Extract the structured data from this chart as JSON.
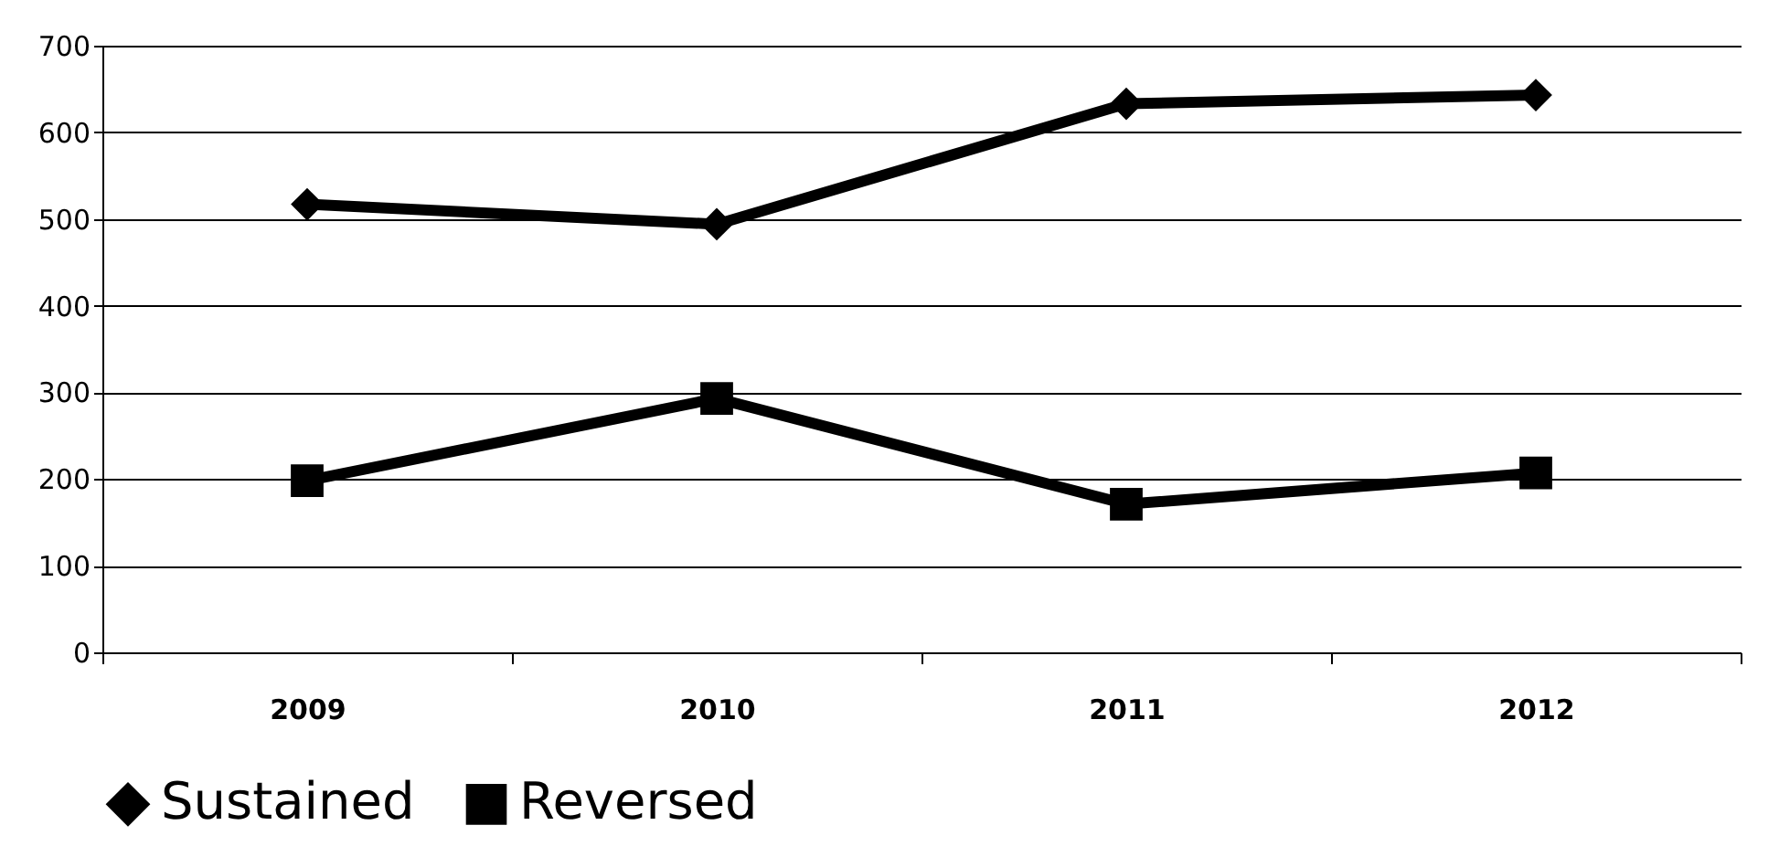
{
  "chart_data": {
    "type": "line",
    "categories": [
      "2009",
      "2010",
      "2011",
      "2012"
    ],
    "series": [
      {
        "name": "Sustained",
        "color": "#000000",
        "marker": "diamond",
        "values": [
          517,
          494,
          633,
          643
        ]
      },
      {
        "name": "Reversed",
        "color": "#000000",
        "marker": "square",
        "values": [
          198,
          293,
          171,
          207
        ]
      }
    ],
    "ylim": [
      0,
      700
    ],
    "yticks": [
      0,
      100,
      200,
      300,
      400,
      500,
      600,
      700
    ],
    "grid": "y",
    "legend": "bottom",
    "line_style": "solid"
  }
}
